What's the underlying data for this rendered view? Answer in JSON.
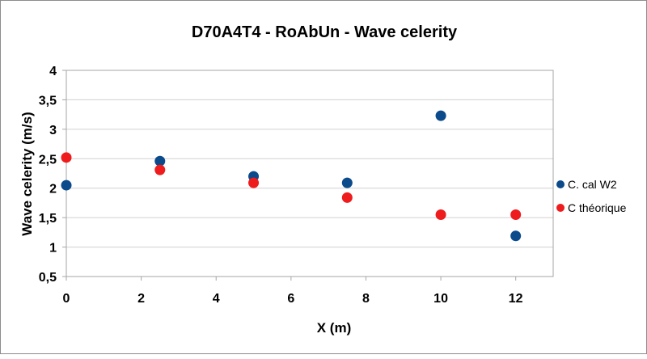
{
  "chart_data": {
    "type": "scatter",
    "title": "D70A4T4  - RoAbUn - Wave celerity",
    "xlabel": "X (m)",
    "ylabel": "Wave celerity (m/s)",
    "xlim": [
      0,
      13
    ],
    "ylim": [
      0.5,
      4
    ],
    "xticks": [
      0,
      2,
      4,
      6,
      8,
      10,
      12
    ],
    "xtick_labels": [
      "0",
      "2",
      "4",
      "6",
      "8",
      "10",
      "12"
    ],
    "yticks": [
      0.5,
      1,
      1.5,
      2,
      2.5,
      3,
      3.5,
      4
    ],
    "ytick_labels": [
      "0,5",
      "1",
      "1,5",
      "2",
      "2,5",
      "3",
      "3,5",
      "4"
    ],
    "grid": "horizontal",
    "legend_position": "right",
    "series": [
      {
        "name": "C. cal W2",
        "color": "#0b4a8b",
        "x": [
          0,
          2.5,
          5,
          7.5,
          10,
          12
        ],
        "y": [
          2.05,
          2.46,
          2.2,
          2.09,
          3.23,
          1.19
        ]
      },
      {
        "name": "C théorique",
        "color": "#ee1c1c",
        "x": [
          0,
          2.5,
          5,
          7.5,
          10,
          12
        ],
        "y": [
          2.52,
          2.31,
          2.09,
          1.84,
          1.55,
          1.55
        ]
      }
    ]
  }
}
